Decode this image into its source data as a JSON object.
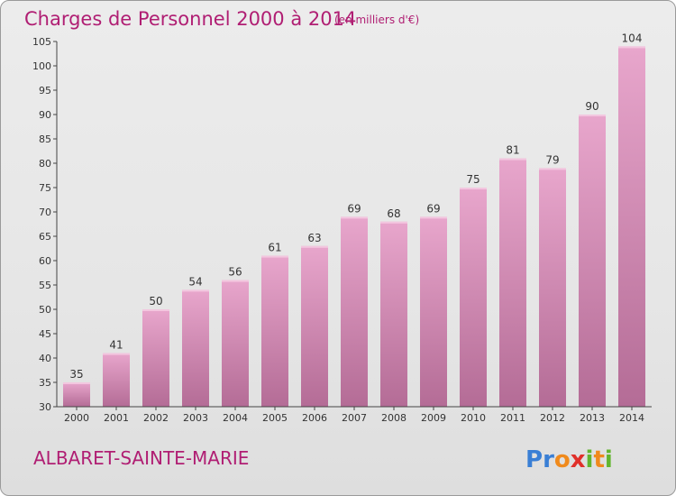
{
  "chart_data": {
    "type": "bar",
    "title": "Charges de Personnel 2000 à 2014",
    "subtitle": "(en milliers d'€)",
    "categories": [
      "2000",
      "2001",
      "2002",
      "2003",
      "2004",
      "2005",
      "2006",
      "2007",
      "2008",
      "2009",
      "2010",
      "2011",
      "2012",
      "2013",
      "2014"
    ],
    "values": [
      35,
      41,
      50,
      54,
      56,
      61,
      63,
      69,
      68,
      69,
      75,
      81,
      79,
      90,
      104
    ],
    "ylim": [
      30,
      105
    ],
    "yticks": [
      30,
      35,
      40,
      45,
      50,
      55,
      60,
      65,
      70,
      75,
      80,
      85,
      90,
      95,
      100,
      105
    ],
    "xlabel": "",
    "ylabel": "",
    "grid": false,
    "bar_color_top": "#e8a6cc",
    "bar_color_bottom": "#b46c96"
  },
  "footer": {
    "commune": "ALBARET-SAINTE-MARIE",
    "logo_letters": [
      "P",
      "r",
      "o",
      "x",
      "i",
      "t",
      "i"
    ],
    "logo_colors": [
      "#3a7fd5",
      "#3a7fd5",
      "#f08a1c",
      "#e0302a",
      "#62b52f",
      "#f08a1c",
      "#62b52f"
    ]
  }
}
